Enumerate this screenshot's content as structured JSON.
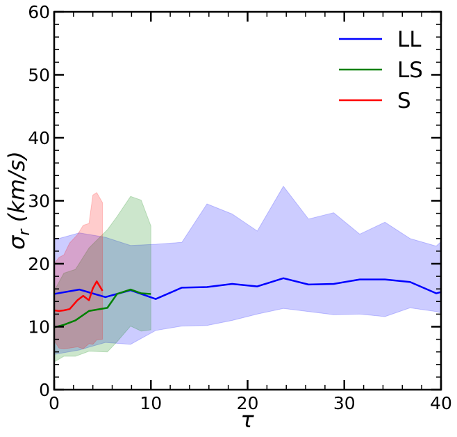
{
  "chart_data": {
    "type": "line",
    "title": "",
    "xlabel": "τ",
    "ylabel_symbol": "σ",
    "ylabel_subscript": "r",
    "ylabel_rest": " (km/s)",
    "ylabel": "σ_r (km/s)",
    "xlim": [
      0,
      40
    ],
    "ylim": [
      0,
      60
    ],
    "xticks": [
      0,
      10,
      20,
      30,
      40
    ],
    "xtick_labels": [
      "0",
      "10",
      "20",
      "30",
      "40"
    ],
    "yticks": [
      0,
      10,
      20,
      30,
      40,
      50,
      60
    ],
    "ytick_labels": [
      "0",
      "10",
      "20",
      "30",
      "40",
      "50",
      "60"
    ],
    "x_minor_step": 2,
    "y_minor_step": 2,
    "grid": false,
    "legend_position": "upper right",
    "series": [
      {
        "name": "LL",
        "color": "#0000ff",
        "fill_color": "#0000ff",
        "fill_opacity": 0.2,
        "x": [
          0,
          2.6,
          5.3,
          7.9,
          10.5,
          13.2,
          15.8,
          18.4,
          21.0,
          23.7,
          26.3,
          28.9,
          31.6,
          34.2,
          36.8,
          39.5,
          40
        ],
        "values": [
          15.2,
          15.9,
          14.7,
          15.8,
          14.4,
          16.2,
          16.3,
          16.8,
          16.4,
          17.7,
          16.7,
          16.8,
          17.5,
          17.5,
          17.1,
          15.3,
          15.5
        ],
        "upper": [
          23.8,
          24.9,
          24.2,
          22.9,
          23.1,
          23.4,
          29.5,
          27.9,
          25.2,
          32.3,
          27.1,
          28.1,
          24.7,
          26.6,
          24.0,
          22.8,
          23.5
        ],
        "lower": [
          5.6,
          6.3,
          7.5,
          7.2,
          9.4,
          10.1,
          10.2,
          11.0,
          12.0,
          12.9,
          12.4,
          11.9,
          12.0,
          11.6,
          13.0,
          12.4,
          12.2
        ]
      },
      {
        "name": "LS",
        "color": "#008000",
        "fill_color": "#008000",
        "fill_opacity": 0.2,
        "x": [
          0,
          1.0,
          2.2,
          3.6,
          5.5,
          6.5,
          7.9,
          9.0,
          10.0
        ],
        "values": [
          9.9,
          10.3,
          11.0,
          12.5,
          13.0,
          15.2,
          15.9,
          15.3,
          15.2
        ],
        "upper": [
          15.7,
          18.5,
          19.1,
          22.5,
          25.4,
          27.5,
          30.7,
          30.1,
          26.0
        ],
        "lower": [
          4.4,
          5.3,
          5.3,
          6.1,
          6.0,
          7.6,
          10.1,
          9.3,
          9.5
        ]
      },
      {
        "name": "S",
        "color": "#ff0000",
        "fill_color": "#ff0000",
        "fill_opacity": 0.2,
        "x": [
          0,
          0.5,
          1.0,
          1.6,
          2.4,
          3.0,
          3.6,
          4.0,
          4.4,
          5.0
        ],
        "values": [
          12.6,
          12.5,
          12.6,
          12.8,
          14.2,
          14.9,
          14.2,
          16.1,
          17.2,
          15.7
        ],
        "upper": [
          20.0,
          21.0,
          21.4,
          23.3,
          24.6,
          26.1,
          26.4,
          30.9,
          31.3,
          29.7
        ],
        "lower": [
          7.8,
          6.6,
          6.5,
          6.6,
          6.8,
          6.5,
          7.3,
          7.2,
          7.9,
          8.0
        ]
      }
    ]
  }
}
